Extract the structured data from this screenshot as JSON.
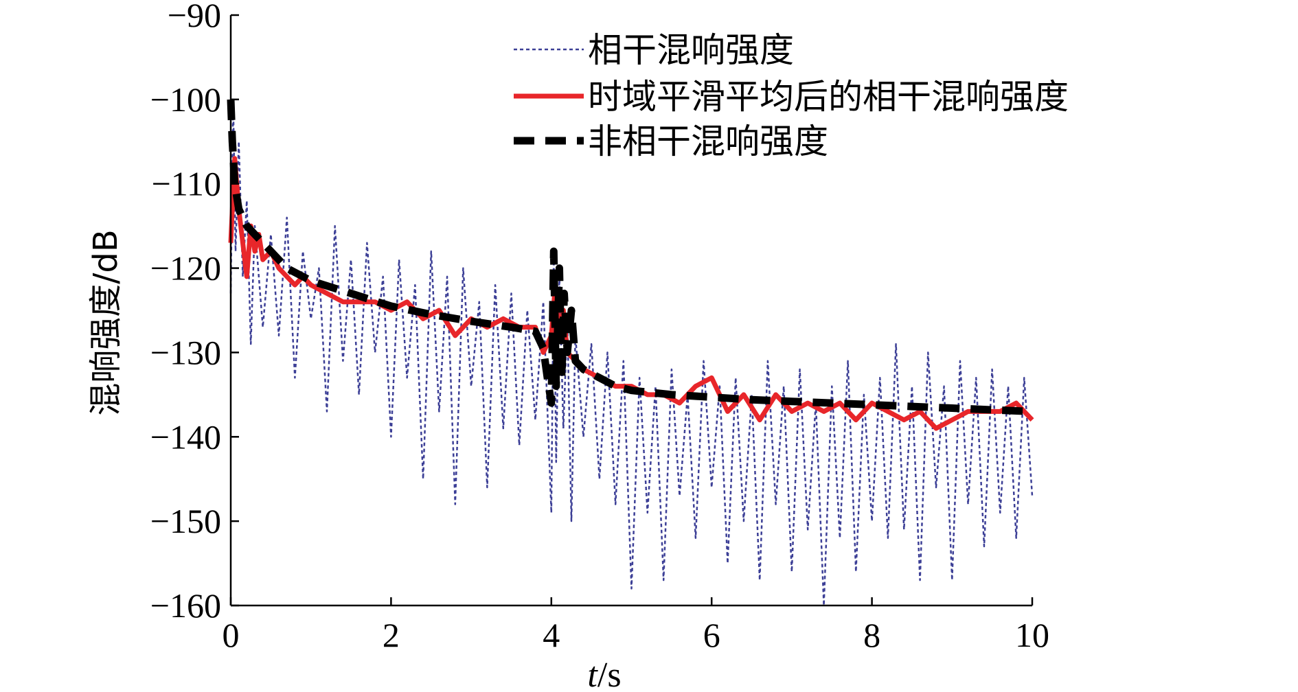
{
  "chart_data": {
    "type": "line",
    "title": "",
    "xlabel_italic": "t",
    "xlabel_unit": "/s",
    "ylabel": "混响强度/dB",
    "xlim": [
      0,
      10
    ],
    "ylim": [
      -160,
      -90
    ],
    "xticks": [
      0,
      2,
      4,
      6,
      8,
      10
    ],
    "yticks": [
      -90,
      -100,
      -110,
      -120,
      -130,
      -140,
      -150,
      -160
    ],
    "grid": false,
    "legend_position": "top-right",
    "series": [
      {
        "name": "相干混响强度",
        "style": "dotted",
        "color": "#3c3f96",
        "x": [
          0,
          0.03,
          0.06,
          0.1,
          0.15,
          0.2,
          0.25,
          0.3,
          0.4,
          0.5,
          0.6,
          0.7,
          0.8,
          0.9,
          1.0,
          1.1,
          1.2,
          1.3,
          1.4,
          1.5,
          1.6,
          1.7,
          1.8,
          1.9,
          2.0,
          2.1,
          2.2,
          2.3,
          2.4,
          2.5,
          2.6,
          2.7,
          2.8,
          2.9,
          3.0,
          3.1,
          3.2,
          3.3,
          3.4,
          3.5,
          3.6,
          3.7,
          3.8,
          3.9,
          4.0,
          4.03,
          4.06,
          4.1,
          4.15,
          4.2,
          4.25,
          4.3,
          4.4,
          4.5,
          4.6,
          4.7,
          4.8,
          4.9,
          5.0,
          5.1,
          5.2,
          5.3,
          5.4,
          5.5,
          5.6,
          5.7,
          5.8,
          5.9,
          6.0,
          6.1,
          6.2,
          6.3,
          6.4,
          6.5,
          6.6,
          6.7,
          6.8,
          6.9,
          7.0,
          7.1,
          7.2,
          7.3,
          7.4,
          7.5,
          7.6,
          7.7,
          7.8,
          7.9,
          8.0,
          8.1,
          8.2,
          8.3,
          8.4,
          8.5,
          8.6,
          8.7,
          8.8,
          8.9,
          9.0,
          9.1,
          9.2,
          9.3,
          9.4,
          9.5,
          9.6,
          9.7,
          9.8,
          9.9,
          10.0
        ],
        "y": [
          -123,
          -100,
          -118,
          -105,
          -121,
          -112,
          -129,
          -115,
          -127,
          -116,
          -128,
          -114,
          -133,
          -118,
          -126,
          -120,
          -137,
          -115,
          -131,
          -119,
          -135,
          -117,
          -130,
          -121,
          -140,
          -119,
          -133,
          -122,
          -145,
          -118,
          -137,
          -121,
          -148,
          -120,
          -134,
          -124,
          -146,
          -122,
          -139,
          -123,
          -141,
          -125,
          -138,
          -124,
          -149,
          -118,
          -143,
          -121,
          -139,
          -126,
          -150,
          -128,
          -140,
          -129,
          -145,
          -130,
          -148,
          -131,
          -158,
          -133,
          -149,
          -134,
          -157,
          -132,
          -147,
          -135,
          -152,
          -131,
          -146,
          -134,
          -155,
          -133,
          -150,
          -135,
          -157,
          -131,
          -148,
          -134,
          -156,
          -132,
          -151,
          -136,
          -160,
          -134,
          -152,
          -131,
          -156,
          -135,
          -150,
          -133,
          -152,
          -129,
          -151,
          -134,
          -157,
          -130,
          -146,
          -134,
          -157,
          -131,
          -148,
          -133,
          -153,
          -132,
          -149,
          -134,
          -152,
          -133,
          -147
        ]
      },
      {
        "name": "时域平滑平均后的相干混响强度",
        "style": "solid",
        "color": "#e8262a",
        "x": [
          0,
          0.05,
          0.1,
          0.15,
          0.2,
          0.25,
          0.3,
          0.35,
          0.4,
          0.5,
          0.6,
          0.7,
          0.8,
          0.9,
          1.0,
          1.2,
          1.4,
          1.6,
          1.8,
          2.0,
          2.2,
          2.4,
          2.6,
          2.8,
          3.0,
          3.2,
          3.4,
          3.6,
          3.8,
          3.9,
          4.0,
          4.05,
          4.1,
          4.15,
          4.2,
          4.3,
          4.4,
          4.6,
          4.8,
          5.0,
          5.2,
          5.4,
          5.6,
          5.8,
          6.0,
          6.2,
          6.4,
          6.6,
          6.8,
          7.0,
          7.2,
          7.4,
          7.6,
          7.8,
          8.0,
          8.2,
          8.4,
          8.6,
          8.8,
          9.0,
          9.2,
          9.4,
          9.6,
          9.8,
          10.0
        ],
        "y": [
          -117,
          -107,
          -113,
          -117,
          -121,
          -115,
          -118,
          -116,
          -119,
          -118,
          -120,
          -121,
          -122,
          -121,
          -122,
          -123,
          -124,
          -124,
          -124,
          -125,
          -124,
          -126,
          -125,
          -128,
          -126,
          -127,
          -126,
          -127,
          -127,
          -130,
          -128,
          -122,
          -128,
          -125,
          -130,
          -131,
          -132,
          -133,
          -134,
          -134,
          -135,
          -135,
          -136,
          -134,
          -133,
          -137,
          -135,
          -138,
          -135,
          -137,
          -136,
          -137,
          -136,
          -138,
          -136,
          -137,
          -138,
          -137,
          -139,
          -138,
          -137,
          -137,
          -137,
          -136,
          -138
        ]
      },
      {
        "name": "非相干混响强度",
        "style": "dashed",
        "color": "#000000",
        "x": [
          0,
          0.02,
          0.05,
          0.1,
          0.2,
          0.3,
          0.5,
          0.7,
          1.0,
          1.5,
          2.0,
          2.5,
          3.0,
          3.5,
          3.8,
          3.9,
          3.95,
          4.0,
          4.03,
          4.06,
          4.1,
          4.13,
          4.16,
          4.2,
          4.25,
          4.3,
          4.4,
          4.6,
          4.8,
          5.0,
          5.5,
          6.0,
          6.5,
          7.0,
          7.5,
          8.0,
          8.5,
          9.0,
          9.5,
          10.0
        ],
        "y": [
          -100,
          -105,
          -110,
          -113,
          -115,
          -116,
          -118,
          -120,
          -121.5,
          -123,
          -124.5,
          -125.5,
          -126.3,
          -127,
          -127.5,
          -129.5,
          -133,
          -136,
          -118,
          -134,
          -120,
          -133,
          -123,
          -130,
          -125,
          -131,
          -132,
          -133,
          -134,
          -134.5,
          -135,
          -135.3,
          -135.6,
          -135.8,
          -136,
          -136.2,
          -136.4,
          -136.6,
          -136.8,
          -137
        ]
      }
    ]
  }
}
